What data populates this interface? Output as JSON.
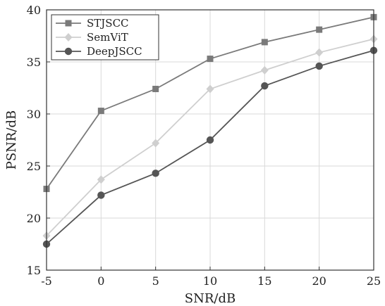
{
  "chart_data": {
    "type": "line",
    "title": "",
    "xlabel": "SNR/dB",
    "ylabel": "PSNR/dB",
    "x": [
      -5,
      0,
      5,
      10,
      15,
      20,
      25
    ],
    "xlim": [
      -5,
      25
    ],
    "ylim": [
      15,
      40
    ],
    "xticks": [
      -5,
      0,
      5,
      10,
      15,
      20,
      25
    ],
    "yticks": [
      15,
      20,
      25,
      30,
      35,
      40
    ],
    "grid": true,
    "legend_position": "top-left",
    "series": [
      {
        "name": "STJSCC",
        "values": [
          22.8,
          30.3,
          32.4,
          35.3,
          36.9,
          38.1,
          39.3
        ],
        "color": "#7a7a7a",
        "marker": "square"
      },
      {
        "name": "SemViT",
        "values": [
          18.3,
          23.7,
          27.2,
          32.4,
          34.2,
          35.9,
          37.2
        ],
        "color": "#cfcfcf",
        "marker": "diamond"
      },
      {
        "name": "DeepJSCC",
        "values": [
          17.5,
          22.2,
          24.3,
          27.5,
          32.7,
          34.6,
          36.1
        ],
        "color": "#555555",
        "marker": "circle"
      }
    ]
  }
}
